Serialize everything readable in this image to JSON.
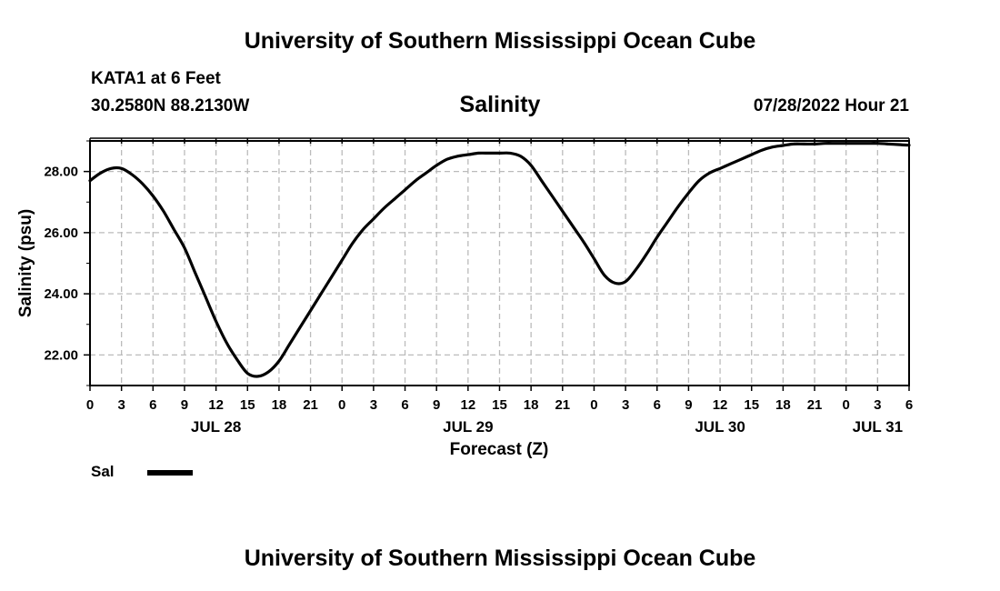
{
  "header": {
    "title": "University of Southern Mississippi Ocean Cube",
    "station": "KATA1 at 6 Feet",
    "coords": "30.2580N  88.2130W",
    "variable": "Salinity",
    "date": "07/28/2022 Hour 21"
  },
  "footer": {
    "title": "University of Southern Mississippi Ocean Cube"
  },
  "legend": {
    "label": "Sal"
  },
  "chart_data": {
    "type": "line",
    "title": "Salinity",
    "xlabel": "Forecast (Z)",
    "ylabel": "Salinity (psu)",
    "xlim": [
      0,
      78
    ],
    "ylim": [
      21,
      29
    ],
    "grid": true,
    "legend_position": "bottom-left",
    "x_ticks": [
      0,
      3,
      6,
      9,
      12,
      15,
      18,
      21,
      24,
      27,
      30,
      33,
      36,
      39,
      42,
      45,
      48,
      51,
      54,
      57,
      60,
      63,
      66,
      69,
      72,
      75,
      78
    ],
    "x_tick_labels": [
      "0",
      "3",
      "6",
      "9",
      "12",
      "15",
      "18",
      "21",
      "0",
      "3",
      "6",
      "9",
      "12",
      "15",
      "18",
      "21",
      "0",
      "3",
      "6",
      "9",
      "12",
      "15",
      "18",
      "21",
      "0",
      "3",
      "6"
    ],
    "day_labels": [
      {
        "x": 12,
        "label": "JUL 28"
      },
      {
        "x": 36,
        "label": "JUL 29"
      },
      {
        "x": 60,
        "label": "JUL 30"
      },
      {
        "x": 75,
        "label": "JUL 31"
      }
    ],
    "y_ticks": [
      22,
      24,
      26,
      28
    ],
    "y_tick_labels": [
      "22.00",
      "24.00",
      "26.00",
      "28.00"
    ],
    "series": [
      {
        "name": "Sal",
        "color": "#000000",
        "x": [
          0,
          1,
          2,
          3,
          4,
          5,
          6,
          7,
          8,
          9,
          10,
          11,
          12,
          13,
          14,
          15,
          16,
          17,
          18,
          19,
          20,
          21,
          22,
          23,
          24,
          25,
          26,
          27,
          28,
          29,
          30,
          31,
          32,
          33,
          34,
          35,
          36,
          37,
          38,
          39,
          40,
          41,
          42,
          43,
          44,
          45,
          46,
          47,
          48,
          49,
          50,
          51,
          52,
          53,
          54,
          55,
          56,
          57,
          58,
          59,
          60,
          61,
          62,
          63,
          64,
          65,
          66,
          67,
          68,
          69,
          70,
          71,
          72,
          73,
          74,
          75,
          76,
          77,
          78
        ],
        "y": [
          27.7,
          27.95,
          28.1,
          28.1,
          27.9,
          27.6,
          27.2,
          26.7,
          26.1,
          25.5,
          24.7,
          23.9,
          23.1,
          22.4,
          21.85,
          21.4,
          21.3,
          21.45,
          21.8,
          22.35,
          22.9,
          23.45,
          24.0,
          24.55,
          25.1,
          25.65,
          26.1,
          26.45,
          26.8,
          27.1,
          27.4,
          27.7,
          27.95,
          28.2,
          28.4,
          28.5,
          28.55,
          28.6,
          28.6,
          28.6,
          28.6,
          28.5,
          28.2,
          27.7,
          27.2,
          26.7,
          26.2,
          25.7,
          25.15,
          24.6,
          24.35,
          24.4,
          24.8,
          25.3,
          25.85,
          26.35,
          26.85,
          27.3,
          27.7,
          27.95,
          28.1,
          28.25,
          28.4,
          28.55,
          28.7,
          28.8,
          28.85,
          28.9,
          28.9,
          28.9,
          28.92,
          28.92,
          28.92,
          28.92,
          28.92,
          28.92,
          28.9,
          28.88,
          28.86
        ]
      }
    ]
  }
}
